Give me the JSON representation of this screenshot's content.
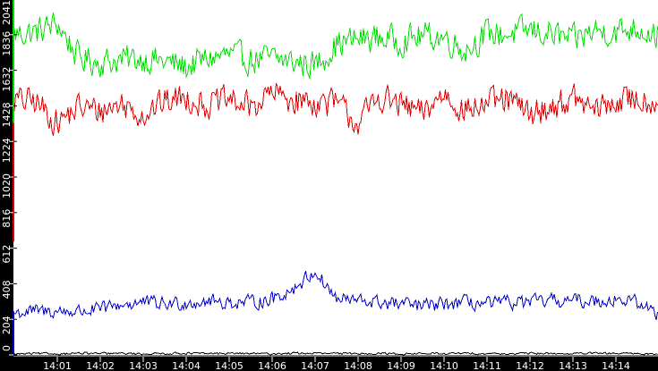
{
  "chart_data": {
    "type": "line",
    "title": "",
    "xlabel": "",
    "ylabel": "",
    "ylim": [
      0,
      2041
    ],
    "grid": false,
    "legend": null,
    "y_ticks": [
      0,
      204,
      408,
      612,
      816,
      1020,
      1224,
      1428,
      1632,
      1836,
      2041
    ],
    "x_ticks": [
      "14:01",
      "14:02",
      "14:03",
      "14:04",
      "14:05",
      "14:06",
      "14:07",
      "14:08",
      "14:09",
      "14:10",
      "14:11",
      "14:12",
      "14:13",
      "14:14"
    ],
    "x_range_minutes": [
      "14:00:00",
      "14:15:00"
    ],
    "x": [
      "14:00:00",
      "14:00:30",
      "14:01:00",
      "14:01:30",
      "14:02:00",
      "14:02:30",
      "14:03:00",
      "14:03:30",
      "14:04:00",
      "14:04:30",
      "14:05:00",
      "14:05:30",
      "14:06:00",
      "14:06:30",
      "14:07:00",
      "14:07:30",
      "14:08:00",
      "14:08:30",
      "14:09:00",
      "14:09:30",
      "14:10:00",
      "14:10:30",
      "14:11:00",
      "14:11:30",
      "14:12:00",
      "14:12:30",
      "14:13:00",
      "14:13:30",
      "14:14:00",
      "14:14:30",
      "14:15:00"
    ],
    "series": [
      {
        "name": "green-series",
        "color": "#00e000",
        "values": [
          1840,
          1850,
          1900,
          1700,
          1680,
          1690,
          1700,
          1680,
          1650,
          1700,
          1720,
          1690,
          1700,
          1680,
          1660,
          1780,
          1810,
          1820,
          1800,
          1830,
          1820,
          1750,
          1840,
          1840,
          1860,
          1840,
          1800,
          1860,
          1850,
          1880,
          1830
        ]
      },
      {
        "name": "red-series",
        "color": "#e00000",
        "values": [
          1460,
          1450,
          1330,
          1420,
          1400,
          1440,
          1380,
          1450,
          1480,
          1430,
          1460,
          1420,
          1500,
          1460,
          1450,
          1440,
          1330,
          1480,
          1430,
          1380,
          1500,
          1400,
          1440,
          1460,
          1380,
          1420,
          1470,
          1400,
          1450,
          1470,
          1450
        ]
      },
      {
        "name": "blue-series",
        "color": "#0000c8",
        "values": [
          240,
          250,
          250,
          250,
          260,
          290,
          300,
          290,
          300,
          310,
          300,
          300,
          320,
          380,
          480,
          320,
          310,
          300,
          290,
          280,
          290,
          300,
          290,
          300,
          300,
          310,
          310,
          310,
          320,
          300,
          230
        ]
      },
      {
        "name": "black-baseline-series",
        "color": "#000000",
        "values": [
          5,
          8,
          6,
          10,
          7,
          9,
          6,
          8,
          10,
          7,
          9,
          8,
          6,
          10,
          9,
          7,
          8,
          9,
          6,
          8,
          7,
          9,
          8,
          6,
          9,
          8,
          7,
          9,
          8,
          7,
          6
        ]
      }
    ],
    "left_strip": [
      {
        "color": "#00e000",
        "from": 2041,
        "to": 816
      },
      {
        "color": "#e00000",
        "from": 1330,
        "to": 650
      },
      {
        "color": "#0000c8",
        "from": 250,
        "to": 0
      }
    ]
  }
}
